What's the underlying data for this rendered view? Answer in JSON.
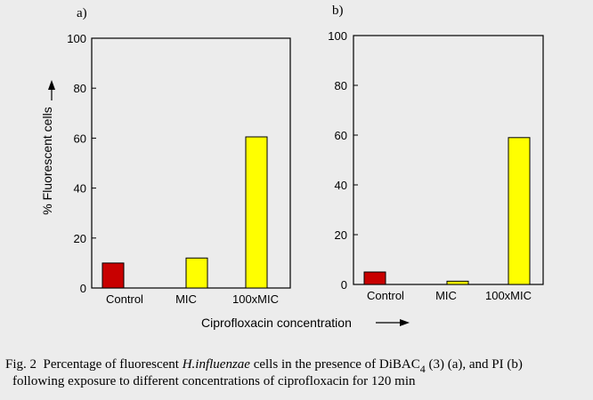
{
  "colors": {
    "background": "#ececec",
    "control_bar": "#c80000",
    "treated_bar": "#ffff00",
    "bar_outline": "#000000"
  },
  "y_axis_label": "% Fluorescent cells",
  "x_axis_label": "Ciprofloxacin concentration",
  "caption": {
    "fig_label": "Fig. 2",
    "part1": "Percentage of fluorescent",
    "organism": "H.influenzae",
    "part2": "cells in the presence of DiBAC",
    "subscript": "4",
    "part3": "(3) (a), and PI (b)",
    "line2": "following exposure to different concentrations of ciprofloxacin for 120 min"
  },
  "chart_data": [
    {
      "type": "bar",
      "panel_label": "a)",
      "categories": [
        "Control",
        "MIC",
        "100xMIC"
      ],
      "values": [
        10,
        12,
        60.5
      ],
      "bar_colors": [
        "#c80000",
        "#ffff00",
        "#ffff00"
      ],
      "ylim": [
        0,
        100
      ],
      "yticks": [
        0,
        20,
        40,
        60,
        80,
        100
      ],
      "ylabel": "% Fluorescent cells",
      "xlabel": "Ciprofloxacin concentration",
      "grid": false
    },
    {
      "type": "bar",
      "panel_label": "b)",
      "categories": [
        "Control",
        "MIC",
        "100xMIC"
      ],
      "values": [
        5,
        1.3,
        59
      ],
      "bar_colors": [
        "#c80000",
        "#ffff00",
        "#ffff00"
      ],
      "ylim": [
        0,
        100
      ],
      "yticks": [
        0,
        20,
        40,
        60,
        80,
        100
      ],
      "ylabel": "",
      "xlabel": "Ciprofloxacin concentration",
      "grid": false
    }
  ]
}
